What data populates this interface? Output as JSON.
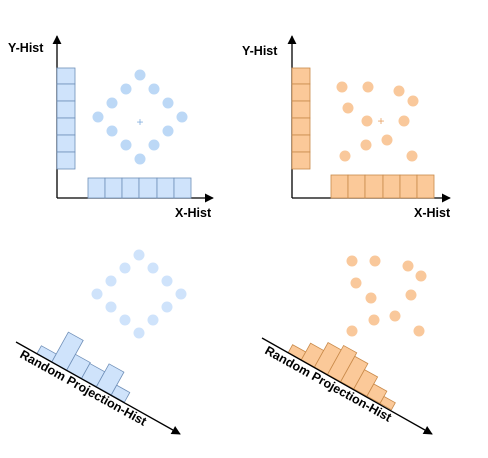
{
  "labels": {
    "y_hist": "Y-Hist",
    "x_hist": "X-Hist",
    "random_projection_hist": "Random Projection-Hist"
  },
  "colors": {
    "blue_fill": "#cfe3fb",
    "blue_stroke": "#6f8fb8",
    "blue_point": "#bcd8f6",
    "orange_fill": "#fbc999",
    "orange_stroke": "#c98a4a",
    "orange_point": "#f9c89b",
    "axis": "#000000"
  },
  "panels": [
    {
      "id": "top-left",
      "color": "blue",
      "projection": "axis"
    },
    {
      "id": "top-right",
      "color": "orange",
      "projection": "axis"
    },
    {
      "id": "bottom-left",
      "color": "blue",
      "projection": "random"
    },
    {
      "id": "bottom-right",
      "color": "orange",
      "projection": "random"
    }
  ],
  "centroid_marker": "+"
}
